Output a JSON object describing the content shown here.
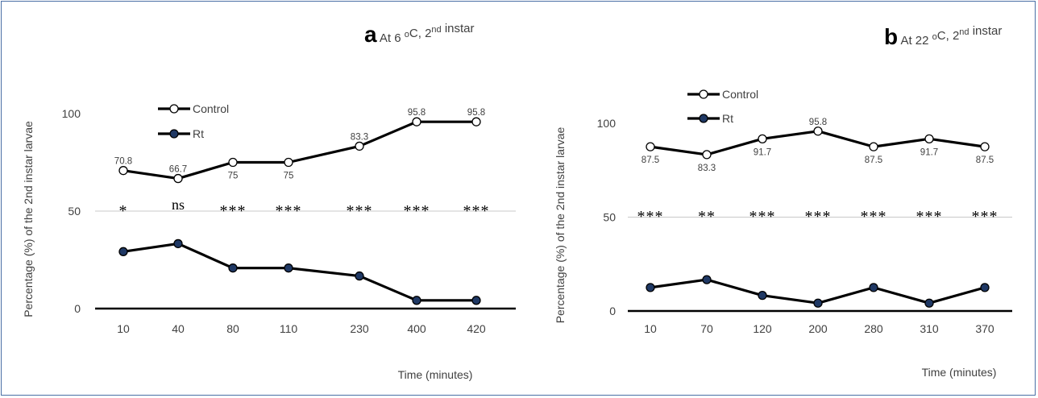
{
  "chart_data": [
    {
      "type": "line",
      "panel_letter": "a",
      "title_prefix": "At 6",
      "title_unit_base": "C, 2",
      "title_unit_sup_deg": "o",
      "title_sup": "nd",
      "title_suffix": "instar",
      "ylabel": "Percentage (%) of the 2nd instar larvae",
      "xlabel": "Time (minutes)",
      "categories": [
        "10",
        "40",
        "80",
        "110",
        "230",
        "400",
        "420"
      ],
      "ylim": [
        0,
        100
      ],
      "yticks": [
        "0",
        "50",
        "100"
      ],
      "grid": "single line at 50",
      "legend": "top-left",
      "series": [
        {
          "name": "Control",
          "values": [
            70.8,
            66.7,
            75,
            75,
            83.3,
            95.8,
            95.8
          ],
          "labels": [
            "70.8",
            "66.7",
            "75",
            "75",
            "83.3",
            "95.8",
            "95.8"
          ],
          "marker_fill": "#ffffff"
        },
        {
          "name": "Rt",
          "values": [
            29.2,
            33.3,
            20.8,
            20.8,
            16.7,
            4.2,
            4.2
          ],
          "marker_fill": "#1f3864"
        }
      ],
      "significance": [
        "*",
        "ns",
        "***",
        "***",
        "***",
        "***",
        "***"
      ]
    },
    {
      "type": "line",
      "panel_letter": "b",
      "title_prefix": "At 22",
      "title_unit_base": "C, 2",
      "title_unit_sup_deg": "o",
      "title_sup": "nd",
      "title_suffix": "instar",
      "ylabel": "Percentage (%) of the 2nd instar larvae",
      "xlabel": "Time (minutes)",
      "categories": [
        "10",
        "70",
        "120",
        "200",
        "280",
        "310",
        "370"
      ],
      "ylim": [
        0,
        100
      ],
      "yticks": [
        "0",
        "50",
        "100"
      ],
      "grid": "single line at 50",
      "legend": "top-left",
      "series": [
        {
          "name": "Control",
          "values": [
            87.5,
            83.3,
            91.7,
            95.8,
            87.5,
            91.7,
            87.5
          ],
          "labels": [
            "87.5",
            "83.3",
            "91.7",
            "95.8",
            "87.5",
            "91.7",
            "87.5"
          ],
          "marker_fill": "#ffffff"
        },
        {
          "name": "Rt",
          "values": [
            12.5,
            16.7,
            8.3,
            4.2,
            12.5,
            4.2,
            12.5
          ],
          "marker_fill": "#1f3864"
        }
      ],
      "significance": [
        "***",
        "**",
        "***",
        "***",
        "***",
        "***",
        "***"
      ]
    }
  ],
  "colors": {
    "line": "#000000",
    "rt_marker": "#1f3864",
    "grid": "#c8c8c8",
    "frame": "#4a6fa5",
    "text": "#404040"
  }
}
